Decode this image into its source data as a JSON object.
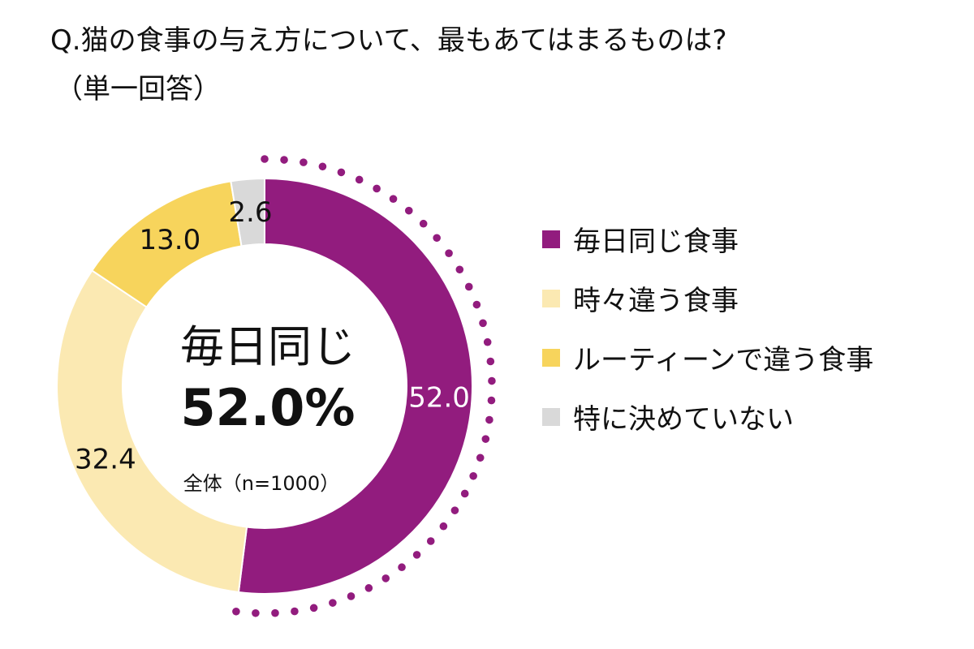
{
  "title": {
    "line1": "Q.猫の食事の与え方について、最もあてはまるものは?",
    "line2": "（単一回答）"
  },
  "center": {
    "label": "毎日同じ",
    "value": "52.0%",
    "base": "全体（n=1000）"
  },
  "chart_data": {
    "type": "pie",
    "donut": true,
    "unit": "%",
    "categories": [
      "毎日同じ食事",
      "時々違う食事",
      "ルーティーンで違う食事",
      "特に決めていない"
    ],
    "values": [
      52.0,
      32.4,
      13.0,
      2.6
    ],
    "data_labels": [
      "52.0",
      "32.4",
      "13.0",
      "2.6"
    ],
    "colors": [
      "#921C7E",
      "#FBE9B2",
      "#F7D45C",
      "#D9D9D9"
    ],
    "label_colors": [
      "#ffffff",
      "#111111",
      "#111111",
      "#111111"
    ],
    "highlight_color": "#921C7E",
    "legend_position": "right"
  }
}
